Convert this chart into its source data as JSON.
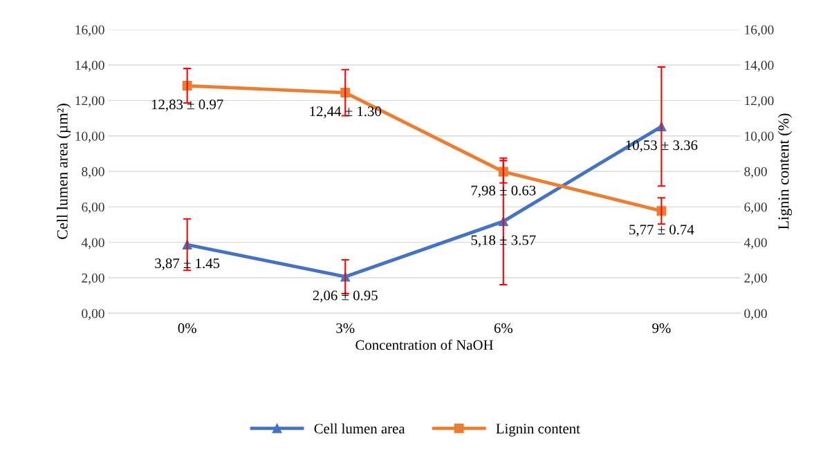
{
  "chart_data": {
    "type": "line",
    "xlabel": "Concentration of NaOH",
    "ylabel": "Cell lumen area (µm²)",
    "y2label": "Lignin content (%)",
    "categories": [
      "0%",
      "3%",
      "6%",
      "9%"
    ],
    "series": [
      {
        "name": "Cell lumen area",
        "color": "#4472c4",
        "marker": "triangle",
        "values": [
          3.87,
          2.06,
          5.18,
          10.53
        ],
        "errors": [
          1.45,
          0.95,
          3.57,
          3.36
        ],
        "value_labels": [
          "3,87 ± 1.45",
          "2,06 ± 0.95",
          "5,18 ± 3.57",
          "10,53 ± 3.36"
        ]
      },
      {
        "name": "Lignin content",
        "color": "#ed7d31",
        "marker": "square",
        "axis": "y2",
        "values": [
          12.83,
          12.44,
          7.98,
          5.77
        ],
        "errors": [
          0.97,
          1.3,
          0.63,
          0.74
        ],
        "value_labels": [
          "12,83 ± 0.97",
          "12,44 ± 1.30",
          "7,98 ± 0.63",
          "5,77 ± 0.74"
        ]
      }
    ],
    "ylim": [
      0,
      16
    ],
    "yticks": [
      {
        "value": 0,
        "label": "0,00"
      },
      {
        "value": 2,
        "label": "2,00"
      },
      {
        "value": 4,
        "label": "4,00"
      },
      {
        "value": 6,
        "label": "6,00"
      },
      {
        "value": 8,
        "label": "8,00"
      },
      {
        "value": 10,
        "label": "10,00"
      },
      {
        "value": 12,
        "label": "12,00"
      },
      {
        "value": 14,
        "label": "14,00"
      },
      {
        "value": 16,
        "label": "16,00"
      }
    ],
    "y2lim": [
      0,
      16
    ],
    "y2ticks": [
      {
        "value": 0,
        "label": "0,00"
      },
      {
        "value": 2,
        "label": "2,00"
      },
      {
        "value": 4,
        "label": "4,00"
      },
      {
        "value": 6,
        "label": "6,00"
      },
      {
        "value": 8,
        "label": "8,00"
      },
      {
        "value": 10,
        "label": "10,00"
      },
      {
        "value": 12,
        "label": "12,00"
      },
      {
        "value": 14,
        "label": "14,00"
      },
      {
        "value": 16,
        "label": "16,00"
      }
    ],
    "grid": "y",
    "legend": "bottom",
    "line_style": "solid"
  }
}
